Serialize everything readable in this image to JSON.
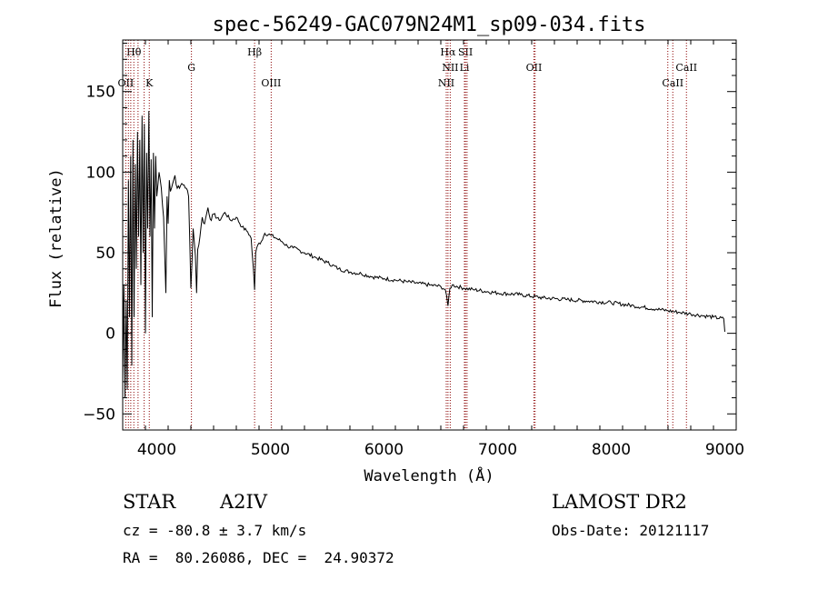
{
  "chart_data": {
    "type": "line",
    "title": "spec-56249-GAC079N24M1_sp09-034.fits",
    "xlabel": "Wavelength (Å)",
    "ylabel": "Flux (relative)",
    "xlim": [
      3700,
      9100
    ],
    "ylim": [
      -60,
      182
    ],
    "xticks": [
      4000,
      5000,
      6000,
      7000,
      8000,
      9000
    ],
    "yticks": [
      -50,
      0,
      50,
      100,
      150
    ],
    "grid": false,
    "line_color": "#000000",
    "marker_color": "#8b0000",
    "series": [
      {
        "x": [
          3700,
          3710,
          3720,
          3730,
          3740,
          3750,
          3760,
          3770,
          3780,
          3790,
          3800,
          3810,
          3820,
          3830,
          3840,
          3850,
          3860,
          3870,
          3880,
          3890,
          3900,
          3910,
          3920,
          3930,
          3940,
          3950,
          3960,
          3970,
          3980,
          3990,
          4000,
          4020,
          4040,
          4060,
          4080,
          4090,
          4100,
          4110,
          4120,
          4140,
          4160,
          4180,
          4200,
          4220,
          4240,
          4260,
          4280,
          4300,
          4320,
          4340,
          4350,
          4360,
          4380,
          4400,
          4420,
          4450,
          4480,
          4500,
          4550,
          4600,
          4650,
          4700,
          4750,
          4800,
          4830,
          4850,
          4861,
          4870,
          4890,
          4920,
          4950,
          5000,
          5050,
          5100,
          5150,
          5200,
          5300,
          5400,
          5500,
          5600,
          5700,
          5800,
          5900,
          6000,
          6100,
          6200,
          6300,
          6400,
          6500,
          6540,
          6563,
          6580,
          6600,
          6700,
          6800,
          7000,
          7200,
          7400,
          7600,
          7800,
          8000,
          8200,
          8400,
          8500,
          8600,
          8700,
          8800,
          8900,
          8990,
          9000
        ],
        "y": [
          -30,
          30,
          -40,
          20,
          -35,
          95,
          10,
          110,
          -20,
          120,
          10,
          105,
          40,
          125,
          60,
          120,
          30,
          135,
          50,
          130,
          0,
          112,
          65,
          138,
          60,
          108,
          10,
          112,
          65,
          110,
          85,
          100,
          90,
          72,
          25,
          85,
          68,
          95,
          88,
          93,
          98,
          90,
          90,
          93,
          92,
          90,
          85,
          28,
          65,
          48,
          25,
          52,
          60,
          72,
          68,
          78,
          70,
          74,
          70,
          75,
          70,
          72,
          66,
          63,
          59,
          40,
          27,
          50,
          55,
          57,
          62,
          61,
          59,
          57,
          54,
          53,
          50,
          47,
          44,
          40,
          38,
          37,
          35,
          34,
          33,
          32,
          31,
          30,
          29,
          27,
          17,
          28,
          30,
          28,
          27,
          25,
          24,
          22,
          21,
          20,
          19,
          17,
          15,
          14,
          13,
          12,
          11,
          10,
          9,
          1
        ]
      }
    ],
    "lines": [
      {
        "label": "Hθ",
        "wave": 3798,
        "row": 1
      },
      {
        "label": "OII",
        "wave": 3727,
        "row": 2
      },
      {
        "label": "K",
        "wave": 3934,
        "row": 2
      },
      {
        "label": "G",
        "wave": 4305,
        "row": 1.5
      },
      {
        "label": "Hβ",
        "wave": 4861,
        "row": 1
      },
      {
        "label": "OIII",
        "wave": 5007,
        "row": 2
      },
      {
        "label": "Hα",
        "wave": 6563,
        "row": 1
      },
      {
        "label": "SII",
        "wave": 6717,
        "row": 1
      },
      {
        "label": "NII",
        "wave": 6583,
        "row": 1.5
      },
      {
        "label": "Li",
        "wave": 6708,
        "row": 1.5
      },
      {
        "label": "NII",
        "wave": 6548,
        "row": 2
      },
      {
        "label": "OII",
        "wave": 7320,
        "row": 1.5
      },
      {
        "label": "CaII",
        "wave": 8662,
        "row": 1.5
      },
      {
        "label": "CaII",
        "wave": 8542,
        "row": 2
      }
    ],
    "extra_line_waves": [
      3750,
      3771,
      3835,
      3889,
      6731,
      7330,
      8498
    ]
  },
  "footer": {
    "class": "STAR",
    "subclass": "A2IV",
    "survey": "LAMOST DR2",
    "cz": "cz = -80.8 ± 3.7 km/s",
    "obsdate": "Obs-Date: 20121117",
    "radec": "RA =  80.26086, DEC =  24.90372"
  }
}
